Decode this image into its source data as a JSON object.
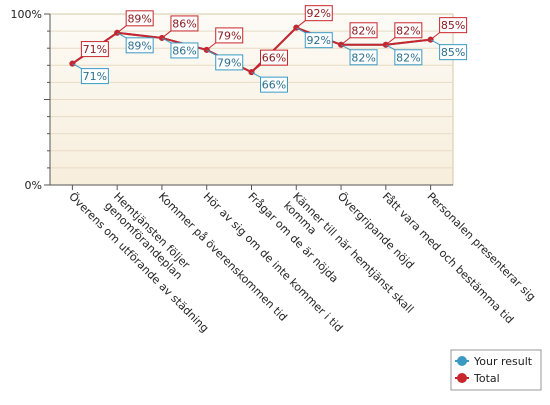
{
  "chart_data": {
    "type": "line",
    "categories": [
      "Överens om utförande av städning",
      "Hemtjänsten följer genomförandeplan",
      "Kommer på överenskommen tid",
      "Hör av sig om de inte kommer i tid",
      "Frågar om de är nöjda",
      "Känner till när hemtjänst skall komma",
      "Övergripande nöjd",
      "Fått vara med och bestämma tid",
      "Personalen presenterar sig"
    ],
    "category_lines": [
      [
        "Överens om utförande av städning"
      ],
      [
        "Hemtjänsten följer",
        "genomförandeplan"
      ],
      [
        "Kommer på överenskommen tid"
      ],
      [
        "Hör av sig om de inte kommer i tid"
      ],
      [
        "Frågar om de är nöjda"
      ],
      [
        "Känner till när hemtjänst skall",
        "komma"
      ],
      [
        "Övergripande nöjd"
      ],
      [
        "Fått vara med och bestämma tid"
      ],
      [
        "Personalen presenterar sig"
      ]
    ],
    "series": [
      {
        "name": "Your result",
        "color": "#3a9ac4",
        "values": [
          71,
          89,
          86,
          79,
          66,
          92,
          82,
          82,
          85
        ],
        "labels": [
          "71%",
          "89%",
          "86%",
          "79%",
          "66%",
          "92%",
          "82%",
          "82%",
          "85%"
        ]
      },
      {
        "name": "Total",
        "color": "#c8262c",
        "values": [
          71,
          89,
          86,
          79,
          66,
          92,
          82,
          82,
          85
        ],
        "labels": [
          "71%",
          "89%",
          "86%",
          "79%",
          "66%",
          "92%",
          "82%",
          "82%",
          "85%"
        ]
      }
    ],
    "y_ticks": [
      "0%",
      "100%"
    ],
    "ylim": [
      0,
      100
    ],
    "grid": true,
    "legend_position": "bottom-right",
    "plot_background": "#fbf6ec",
    "title": "",
    "xlabel": "",
    "ylabel": ""
  }
}
